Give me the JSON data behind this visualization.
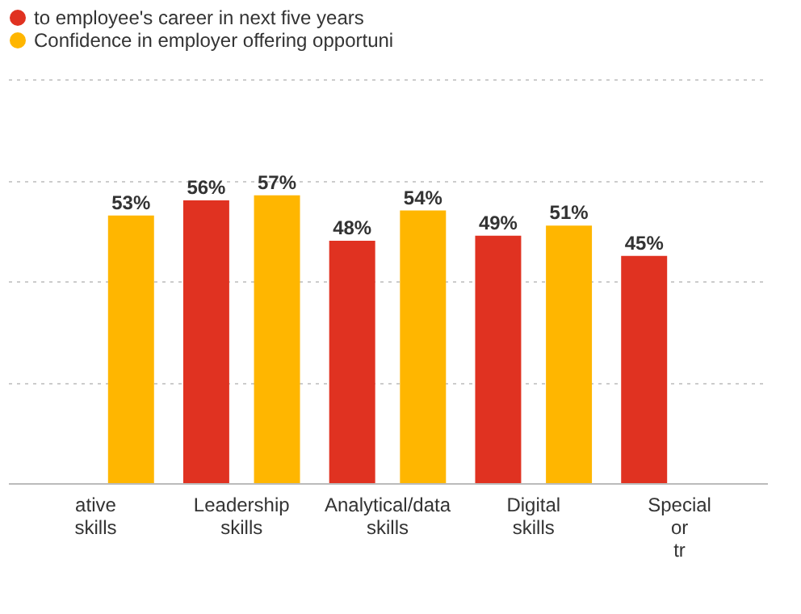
{
  "chart_data": {
    "type": "bar",
    "categories": [
      "ative skills",
      "Leadership skills",
      "Analytical/data skills",
      "Digital skills",
      "Special or tr"
    ],
    "series": [
      {
        "name": "to employee's career in next five years",
        "color": "#e03221",
        "values": [
          null,
          56,
          48,
          49,
          45
        ],
        "value_labels": [
          null,
          "56%",
          "48%",
          "49%",
          "45%"
        ]
      },
      {
        "name": "Confidence in employer offering opportuni",
        "color": "#ffb600",
        "values": [
          53,
          57,
          54,
          51,
          null
        ],
        "value_labels": [
          "53%",
          "57%",
          "54%",
          "51%",
          null
        ]
      }
    ],
    "ylim": [
      0,
      80
    ],
    "yticks": [
      {
        "value": 0,
        "label": null
      },
      {
        "value": 20,
        "label": null
      },
      {
        "value": 40,
        "label": null
      },
      {
        "value": 60,
        "label": null
      },
      {
        "value": 80,
        "label": null
      }
    ],
    "grid": "y",
    "tick_labels": "x",
    "legend": "top"
  }
}
